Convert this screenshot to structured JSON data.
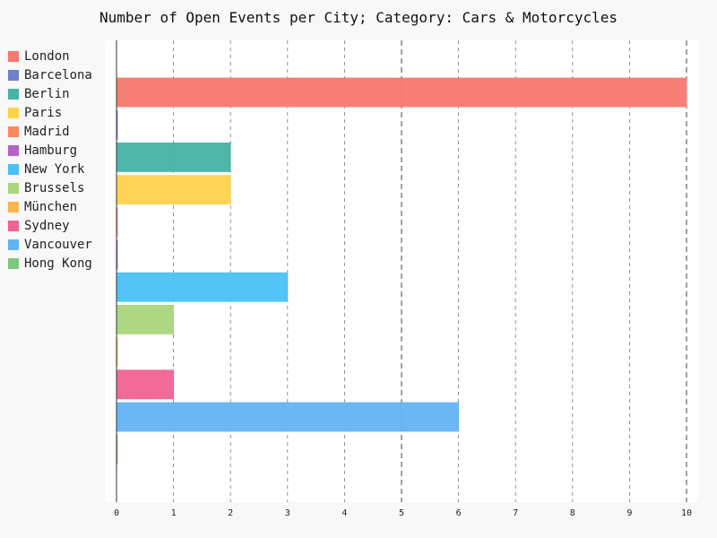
{
  "chart_data": {
    "type": "bar",
    "orientation": "horizontal",
    "title": "Number of Open Events per City; Category: Cars & Motorcycles",
    "xlabel": "",
    "ylabel": "",
    "xlim": [
      0,
      10
    ],
    "xticks": [
      0,
      1,
      2,
      3,
      4,
      5,
      6,
      7,
      8,
      9,
      10
    ],
    "grid": true,
    "legend_position": "left",
    "categories": [
      "London",
      "Barcelona",
      "Berlin",
      "Paris",
      "Madrid",
      "Hamburg",
      "New York",
      "Brussels",
      "München",
      "Sydney",
      "Vancouver",
      "Hong Kong"
    ],
    "values": [
      10,
      0,
      2,
      2,
      0,
      0,
      3,
      1,
      0,
      1,
      6,
      0
    ],
    "colors": [
      "#f8786d",
      "#6f7fcb",
      "#46b3a5",
      "#ffd24a",
      "#fe8660",
      "#b562c7",
      "#49c1f5",
      "#aad57c",
      "#fdb64e",
      "#f06292",
      "#63b3f5",
      "#7ec77e"
    ]
  }
}
